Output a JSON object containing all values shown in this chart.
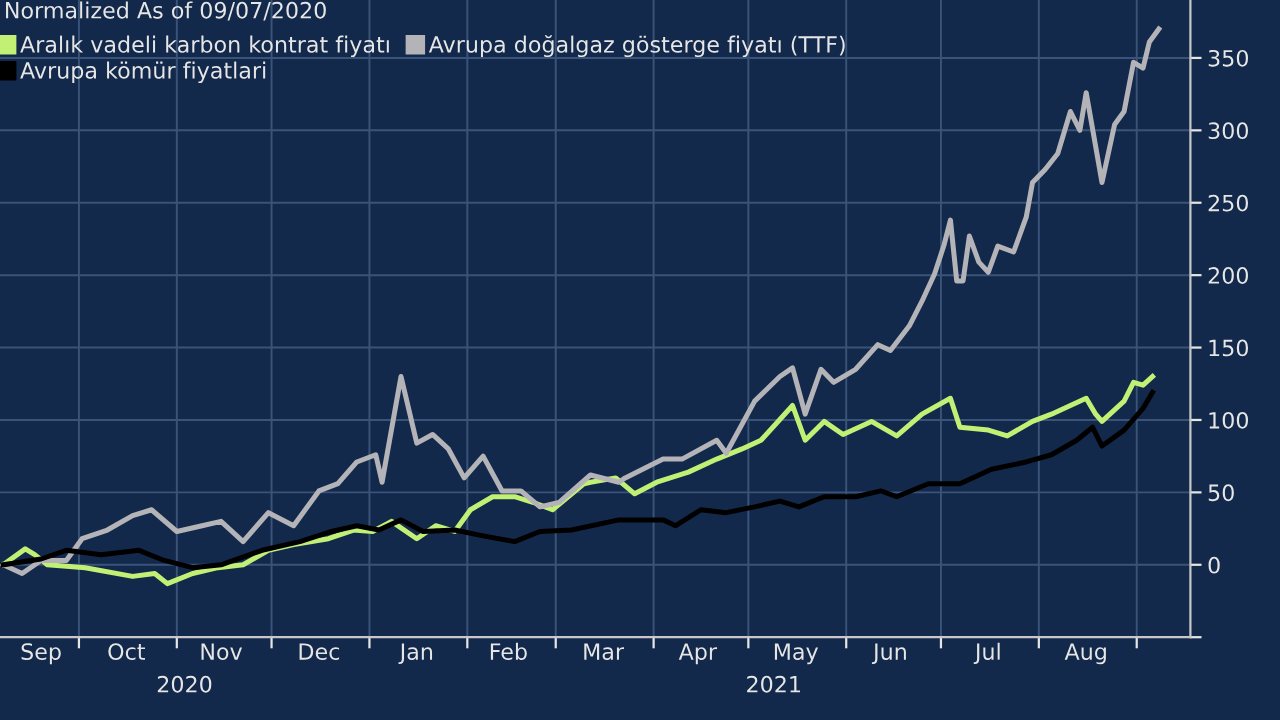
{
  "chart_data": {
    "type": "line",
    "title": "Normalized As of 09/07/2020",
    "series": [
      {
        "name": "Aralık vadeli karbon kontrat fiyatı",
        "color": "#c2f075",
        "x": [
          "2020-09-07",
          "2020-09-14",
          "2020-09-17",
          "2020-09-21",
          "2020-10-03",
          "2020-10-18",
          "2020-10-25",
          "2020-10-29",
          "2020-11-06",
          "2020-11-14",
          "2020-11-22",
          "2020-11-30",
          "2020-12-08",
          "2020-12-19",
          "2020-12-27",
          "2021-01-02",
          "2021-01-08",
          "2021-01-16",
          "2021-01-22",
          "2021-01-28",
          "2021-02-02",
          "2021-02-09",
          "2021-02-16",
          "2021-02-22",
          "2021-02-28",
          "2021-03-10",
          "2021-03-12",
          "2021-03-20",
          "2021-03-26",
          "2021-04-02",
          "2021-04-12",
          "2021-04-21",
          "2021-04-29",
          "2021-05-05",
          "2021-05-15",
          "2021-05-19",
          "2021-05-25",
          "2021-05-31",
          "2021-06-09",
          "2021-06-17",
          "2021-06-25",
          "2021-07-04",
          "2021-07-07",
          "2021-07-16",
          "2021-07-22",
          "2021-07-30",
          "2021-08-05",
          "2021-08-11",
          "2021-08-16",
          "2021-08-19",
          "2021-08-21",
          "2021-08-28",
          "2021-08-31",
          "2021-09-03",
          "2021-09-06"
        ],
        "values": [
          0,
          11,
          7,
          0,
          -2,
          -8,
          -6,
          -13,
          -6,
          -2,
          0,
          10,
          14,
          18,
          24,
          23,
          30,
          18,
          27,
          23,
          38,
          47,
          47,
          43,
          38,
          56,
          57,
          60,
          49,
          57,
          64,
          73,
          80,
          86,
          110,
          86,
          99,
          90,
          99,
          89,
          104,
          115,
          95,
          93,
          89,
          99,
          104,
          110,
          115,
          104,
          99,
          113,
          126,
          124,
          130
        ]
      },
      {
        "name": "Avrupa doğalgaz gösterge fiyatı (TTF)",
        "color": "#b4b4b8",
        "x": [
          "2020-09-07",
          "2020-09-13",
          "2020-09-19",
          "2020-09-27",
          "2020-10-02",
          "2020-10-10",
          "2020-10-18",
          "2020-10-24",
          "2020-11-01",
          "2020-11-09",
          "2020-11-15",
          "2020-11-22",
          "2020-11-30",
          "2020-12-08",
          "2020-12-16",
          "2020-12-22",
          "2020-12-28",
          "2021-01-03",
          "2021-01-05",
          "2021-01-11",
          "2021-01-16",
          "2021-01-21",
          "2021-01-26",
          "2021-01-31",
          "2021-02-06",
          "2021-02-12",
          "2021-02-18",
          "2021-02-24",
          "2021-03-02",
          "2021-03-12",
          "2021-03-21",
          "2021-03-23",
          "2021-04-04",
          "2021-04-10",
          "2021-04-21",
          "2021-04-24",
          "2021-05-03",
          "2021-05-11",
          "2021-05-15",
          "2021-05-19",
          "2021-05-24",
          "2021-05-28",
          "2021-06-04",
          "2021-06-11",
          "2021-06-15",
          "2021-06-21",
          "2021-06-25",
          "2021-06-29",
          "2021-07-02",
          "2021-07-04",
          "2021-07-06",
          "2021-07-08",
          "2021-07-10",
          "2021-07-13",
          "2021-07-16",
          "2021-07-19",
          "2021-07-24",
          "2021-07-28",
          "2021-07-30",
          "2021-08-03",
          "2021-08-07",
          "2021-08-11",
          "2021-08-14",
          "2021-08-16",
          "2021-08-21",
          "2021-08-25",
          "2021-08-28",
          "2021-08-31",
          "2021-09-03",
          "2021-09-05",
          "2021-09-08"
        ],
        "values": [
          0,
          -6,
          3,
          3,
          18,
          24,
          34,
          38,
          23,
          27,
          30,
          16,
          36,
          27,
          51,
          56,
          71,
          76,
          57,
          130,
          84,
          90,
          80,
          60,
          75,
          51,
          51,
          40,
          43,
          62,
          57,
          60,
          73,
          73,
          86,
          77,
          113,
          130,
          136,
          104,
          135,
          126,
          135,
          152,
          148,
          165,
          182,
          201,
          221,
          238,
          196,
          196,
          227,
          209,
          202,
          220,
          216,
          240,
          264,
          273,
          284,
          313,
          300,
          326,
          264,
          304,
          313,
          347,
          343,
          361,
          370
        ]
      },
      {
        "name": "Avrupa kömür fiyatlari",
        "color": "#000000",
        "x": [
          "2020-09-07",
          "2020-09-19",
          "2020-09-27",
          "2020-10-08",
          "2020-10-20",
          "2020-10-28",
          "2020-11-06",
          "2020-11-15",
          "2020-11-28",
          "2020-12-10",
          "2020-12-20",
          "2020-12-28",
          "2021-01-04",
          "2021-01-11",
          "2021-01-18",
          "2021-01-28",
          "2021-02-06",
          "2021-02-16",
          "2021-02-24",
          "2021-03-06",
          "2021-03-21",
          "2021-04-04",
          "2021-04-08",
          "2021-04-16",
          "2021-04-24",
          "2021-05-03",
          "2021-05-11",
          "2021-05-17",
          "2021-05-25",
          "2021-06-04",
          "2021-06-12",
          "2021-06-17",
          "2021-06-27",
          "2021-07-07",
          "2021-07-17",
          "2021-07-28",
          "2021-08-05",
          "2021-08-13",
          "2021-08-18",
          "2021-08-21",
          "2021-08-28",
          "2021-09-03",
          "2021-09-06"
        ],
        "values": [
          0,
          4,
          10,
          7,
          10,
          3,
          -2,
          0,
          10,
          16,
          23,
          27,
          24,
          31,
          23,
          24,
          20,
          16,
          23,
          24,
          31,
          31,
          27,
          38,
          36,
          40,
          44,
          40,
          47,
          47,
          51,
          47,
          56,
          56,
          66,
          71,
          76,
          86,
          95,
          82,
          93,
          108,
          119
        ]
      }
    ],
    "xlim": [
      "2020-09-06",
      "2021-09-18"
    ],
    "xticks": [
      {
        "value": "2020-09-19",
        "label": "Sep"
      },
      {
        "value": "2020-10-01",
        "label": null
      },
      {
        "value": "2020-10-16",
        "label": "Oct"
      },
      {
        "value": "2020-11-01",
        "label": null
      },
      {
        "value": "2020-11-15",
        "label": "Nov"
      },
      {
        "value": "2020-12-01",
        "label": null
      },
      {
        "value": "2020-12-16",
        "label": "Dec"
      },
      {
        "value": "2021-01-01",
        "label": null
      },
      {
        "value": "2021-01-16",
        "label": "Jan"
      },
      {
        "value": "2021-02-01",
        "label": null
      },
      {
        "value": "2021-02-14",
        "label": "Feb"
      },
      {
        "value": "2021-03-01",
        "label": null
      },
      {
        "value": "2021-03-16",
        "label": "Mar"
      },
      {
        "value": "2021-04-01",
        "label": null
      },
      {
        "value": "2021-04-15",
        "label": "Apr"
      },
      {
        "value": "2021-05-01",
        "label": null
      },
      {
        "value": "2021-05-16",
        "label": "May"
      },
      {
        "value": "2021-06-01",
        "label": null
      },
      {
        "value": "2021-06-15",
        "label": "Jun"
      },
      {
        "value": "2021-07-01",
        "label": null
      },
      {
        "value": "2021-07-16",
        "label": "Jul"
      },
      {
        "value": "2021-08-01",
        "label": null
      },
      {
        "value": "2021-08-16",
        "label": "Aug"
      },
      {
        "value": "2021-09-01",
        "label": null
      }
    ],
    "ylim": [
      -50,
      390
    ],
    "yticks": [
      {
        "value": -50,
        "label": null
      },
      0,
      50,
      100,
      150,
      200,
      250,
      300,
      350
    ],
    "annotations": [
      "2020",
      "2021"
    ],
    "grid": true,
    "legend": "top left"
  }
}
